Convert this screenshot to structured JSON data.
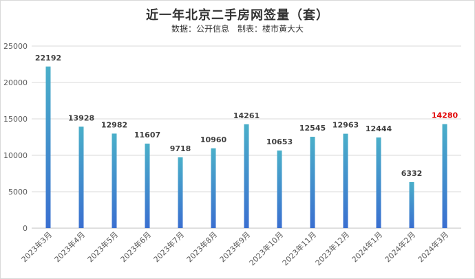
{
  "chart_data": {
    "type": "bar",
    "title": "近一年北京二手房网签量（套）",
    "subtitle": "数据：公开信息　制表：楼市黄大大",
    "categories": [
      "2023年3月",
      "2023年4月",
      "2023年5月",
      "2023年6月",
      "2023年7月",
      "2023年8月",
      "2023年9月",
      "2023年10月",
      "2023年11月",
      "2023年12月",
      "2024年1月",
      "2024年2月",
      "2024年3月"
    ],
    "values": [
      22192,
      13928,
      12982,
      11607,
      9718,
      10960,
      14261,
      10653,
      12545,
      12963,
      12444,
      6332,
      14280
    ],
    "ylim": [
      0,
      25000
    ],
    "yticks": [
      0,
      5000,
      10000,
      15000,
      20000,
      25000
    ],
    "grid": true,
    "xlabel": "",
    "ylabel": "",
    "bar_color_top": "#4aafc9",
    "bar_color_bottom": "#3a6fd0",
    "label_color": "#404040",
    "highlight_label_color": "#e00000",
    "highlight_index": 12
  }
}
